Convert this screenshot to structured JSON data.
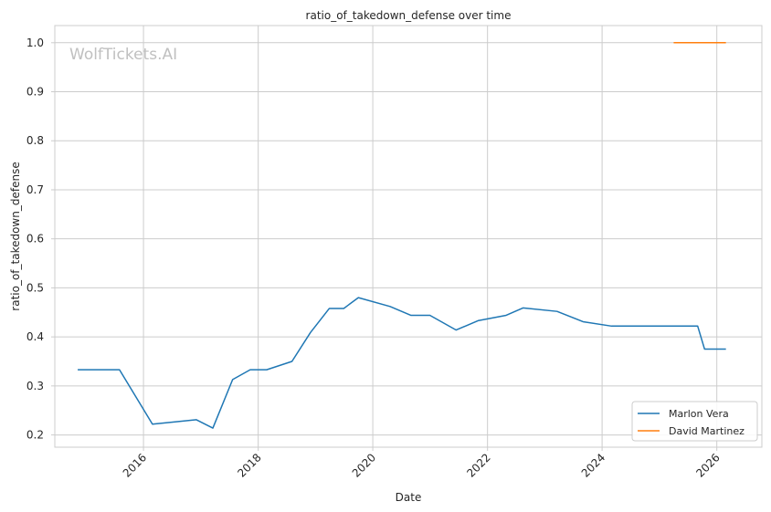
{
  "chart_data": {
    "type": "line",
    "title": "ratio_of_takedown_defense over time",
    "xlabel": "Date",
    "ylabel": "ratio_of_takedown_defense",
    "watermark": "WolfTickets.AI",
    "x_type": "date",
    "xlim": [
      "2014-06-15",
      "2026-10-15"
    ],
    "ylim": [
      0.175,
      1.035
    ],
    "x_ticks": [
      "2016-01-01",
      "2018-01-01",
      "2020-01-01",
      "2022-01-01",
      "2024-01-01",
      "2026-01-01"
    ],
    "x_tick_labels": [
      "2016",
      "2018",
      "2020",
      "2022",
      "2024",
      "2026"
    ],
    "y_ticks": [
      0.2,
      0.3,
      0.4,
      0.5,
      0.6,
      0.7,
      0.8,
      0.9,
      1.0
    ],
    "y_tick_labels": [
      "0.2",
      "0.3",
      "0.4",
      "0.5",
      "0.6",
      "0.7",
      "0.8",
      "0.9",
      "1.0"
    ],
    "grid": true,
    "legend_position": "bottom-right",
    "series": [
      {
        "name": "Marlon Vera",
        "color": "#1f77b4",
        "points": [
          [
            "2014-11-08",
            0.333
          ],
          [
            "2015-08-01",
            0.333
          ],
          [
            "2016-02-27",
            0.222
          ],
          [
            "2016-12-03",
            0.231
          ],
          [
            "2017-03-18",
            0.214
          ],
          [
            "2017-07-22",
            0.313
          ],
          [
            "2017-11-11",
            0.333
          ],
          [
            "2018-02-24",
            0.333
          ],
          [
            "2018-08-04",
            0.35
          ],
          [
            "2018-11-30",
            0.409
          ],
          [
            "2019-03-30",
            0.458
          ],
          [
            "2019-06-30",
            0.458
          ],
          [
            "2019-10-01",
            0.48
          ],
          [
            "2020-04-20",
            0.462
          ],
          [
            "2020-08-30",
            0.444
          ],
          [
            "2020-12-30",
            0.444
          ],
          [
            "2021-06-15",
            0.414
          ],
          [
            "2021-11-01",
            0.433
          ],
          [
            "2022-04-30",
            0.444
          ],
          [
            "2022-08-15",
            0.459
          ],
          [
            "2023-03-20",
            0.452
          ],
          [
            "2023-09-01",
            0.431
          ],
          [
            "2024-03-01",
            0.422
          ],
          [
            "2025-09-01",
            0.422
          ],
          [
            "2025-10-15",
            0.375
          ],
          [
            "2026-02-28",
            0.375
          ]
        ]
      },
      {
        "name": "David Martinez",
        "color": "#ff7f0e",
        "points": [
          [
            "2025-04-01",
            1.0
          ],
          [
            "2026-02-28",
            1.0
          ]
        ]
      }
    ]
  }
}
